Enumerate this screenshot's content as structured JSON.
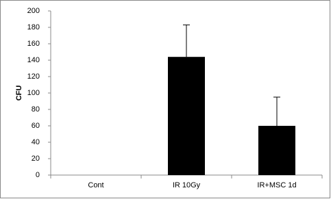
{
  "chart_data": {
    "type": "bar",
    "y_label": "CFU",
    "categories": [
      "Cont",
      "IR 10Gy",
      "IR+MSC 1d"
    ],
    "values": [
      0,
      144,
      60
    ],
    "errors": [
      null,
      39,
      35
    ],
    "color": "#000000",
    "ylim": [
      0,
      200
    ],
    "yticks": [
      0,
      20,
      40,
      60,
      80,
      100,
      120,
      140,
      160,
      180,
      200
    ]
  }
}
